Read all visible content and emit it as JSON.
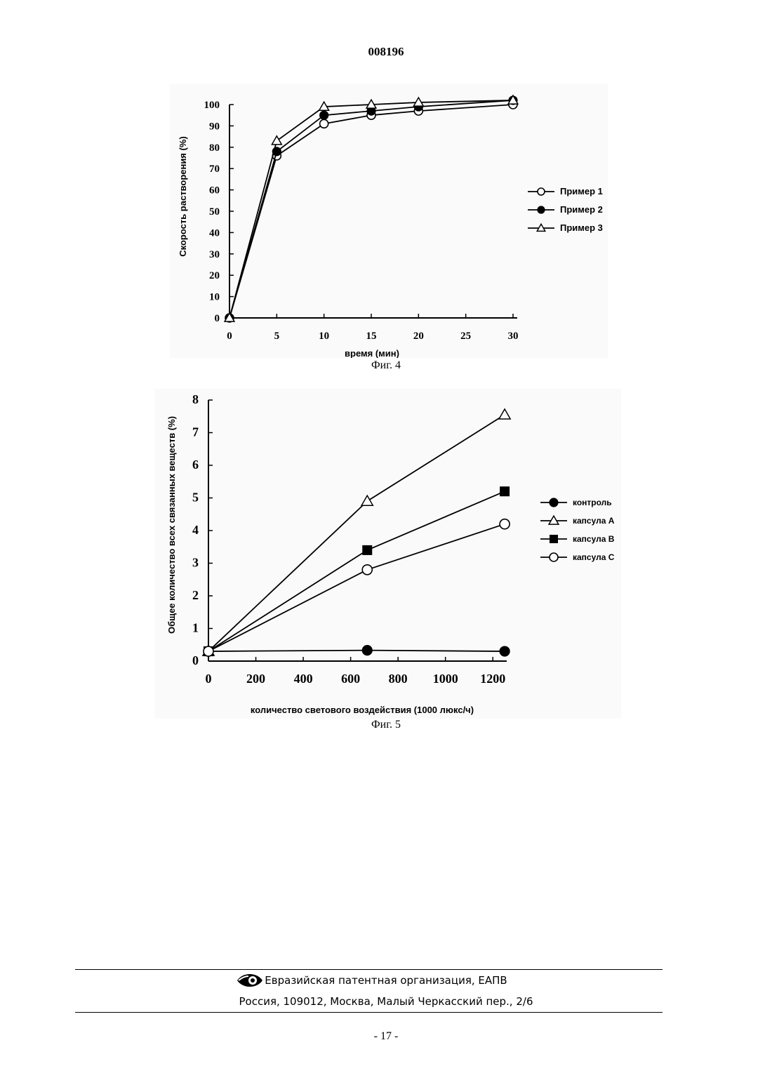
{
  "header": {
    "doc_number": "008196"
  },
  "chart_data": [
    {
      "type": "line",
      "xlabel": "время (мин)",
      "ylabel": "Скорость растворения (%)",
      "xlim": [
        0,
        30
      ],
      "ylim": [
        0,
        100
      ],
      "x_ticks": [
        "0",
        "5",
        "10",
        "15",
        "20",
        "25",
        "30"
      ],
      "y_ticks": [
        "0",
        "10",
        "20",
        "30",
        "40",
        "50",
        "60",
        "70",
        "80",
        "90",
        "100"
      ],
      "legend_position": "right",
      "grid": false,
      "series": [
        {
          "name": "Пример 1",
          "marker": "open-circle",
          "x": [
            0,
            5,
            10,
            15,
            20,
            30
          ],
          "y": [
            0,
            76,
            91,
            95,
            97,
            100
          ]
        },
        {
          "name": "Пример 2",
          "marker": "filled-circle",
          "x": [
            0,
            5,
            10,
            15,
            20,
            30
          ],
          "y": [
            0,
            78,
            95,
            97,
            99,
            102
          ]
        },
        {
          "name": "Пример 3",
          "marker": "open-triangle",
          "x": [
            0,
            5,
            10,
            15,
            20,
            30
          ],
          "y": [
            0,
            83,
            99,
            100,
            101,
            102
          ]
        }
      ]
    },
    {
      "type": "line",
      "xlabel": "количество светового воздействия (1000 люкс/ч)",
      "ylabel": "Общее количество всех связанных веществ (%)",
      "xlim": [
        0,
        1300
      ],
      "ylim": [
        0,
        8
      ],
      "x_ticks": [
        "0",
        "200",
        "400",
        "600",
        "800",
        "1000",
        "1200"
      ],
      "y_ticks": [
        "0",
        "1",
        "2",
        "3",
        "4",
        "5",
        "6",
        "7",
        "8"
      ],
      "legend_position": "right",
      "grid": false,
      "series": [
        {
          "name": "контроль",
          "marker": "filled-circle",
          "x": [
            0,
            670,
            1250
          ],
          "y": [
            0.3,
            0.33,
            0.3
          ]
        },
        {
          "name": "капсула A",
          "marker": "open-triangle",
          "x": [
            0,
            670,
            1250
          ],
          "y": [
            0.3,
            4.9,
            7.55
          ]
        },
        {
          "name": "капсула B",
          "marker": "filled-square",
          "x": [
            0,
            670,
            1250
          ],
          "y": [
            0.3,
            3.4,
            5.2
          ]
        },
        {
          "name": "капсула C",
          "marker": "open-circle",
          "x": [
            0,
            670,
            1250
          ],
          "y": [
            0.3,
            2.8,
            4.2
          ]
        }
      ]
    }
  ],
  "captions": {
    "fig4": "Фиг. 4",
    "fig5": "Фиг. 5"
  },
  "footer": {
    "org": "Евразийская патентная организация, ЕАПВ",
    "address": "Россия, 109012, Москва, Малый Черкасский пер., 2/6"
  },
  "page_number": "- 17 -"
}
